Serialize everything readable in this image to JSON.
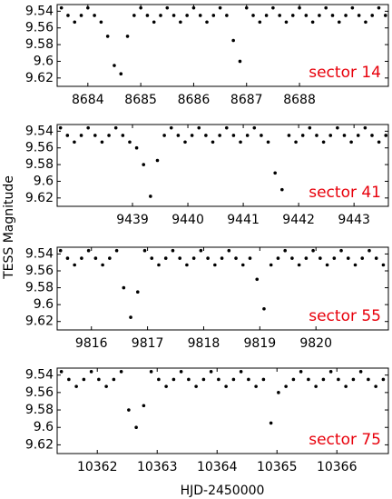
{
  "chart_data": [
    {
      "type": "scatter",
      "annotation": "sector 14",
      "annotation_color": "#e8000b",
      "ylabel": "TESS Magnitude",
      "color": "#000000",
      "y_inverted": true,
      "xlim": [
        8683.42,
        8689.68
      ],
      "xticks": [
        8684,
        8685,
        8686,
        8687,
        8688
      ],
      "ylim": [
        9.532,
        9.63
      ],
      "yticks": [
        9.54,
        9.56,
        9.58,
        9.6,
        9.62
      ],
      "x": [
        8683.5,
        8683.625,
        8683.75,
        8683.875,
        8684,
        8684.125,
        8684.25,
        8684.375,
        8684.5,
        8684.625,
        8684.75,
        8684.875,
        8685,
        8685.125,
        8685.25,
        8685.375,
        8685.5,
        8685.625,
        8685.75,
        8685.875,
        8686,
        8686.125,
        8686.25,
        8686.375,
        8686.5,
        8686.625,
        8686.75,
        8686.875,
        8687,
        8687.125,
        8687.25,
        8687.375,
        8687.5,
        8687.625,
        8687.75,
        8687.875,
        8688,
        8688.125,
        8688.25,
        8688.375,
        8688.5,
        8688.625,
        8688.75,
        8688.875,
        8689,
        8689.125,
        8689.25,
        8689.375,
        8689.5,
        8689.625
      ],
      "values": [
        9.536,
        9.545,
        9.553,
        9.545,
        9.536,
        9.545,
        9.553,
        9.57,
        9.605,
        9.615,
        9.57,
        9.545,
        9.536,
        9.545,
        9.553,
        9.545,
        9.536,
        9.545,
        9.553,
        9.545,
        9.536,
        9.545,
        9.553,
        9.545,
        9.536,
        9.545,
        9.575,
        9.6,
        9.536,
        9.545,
        9.553,
        9.545,
        9.536,
        9.545,
        9.553,
        9.545,
        9.536,
        9.545,
        9.553,
        9.545,
        9.536,
        9.545,
        9.553,
        9.545,
        9.536,
        9.545,
        9.553,
        9.545,
        9.536,
        9.545
      ]
    },
    {
      "type": "scatter",
      "annotation": "sector 41",
      "annotation_color": "#e8000b",
      "color": "#000000",
      "y_inverted": true,
      "xlim": [
        9437.64,
        9443.62
      ],
      "xticks": [
        9439,
        9440,
        9441,
        9442,
        9443
      ],
      "ylim": [
        9.532,
        9.63
      ],
      "yticks": [
        9.54,
        9.56,
        9.58,
        9.6,
        9.62
      ],
      "x": [
        9437.7,
        9437.825,
        9437.95,
        9438.075,
        9438.2,
        9438.325,
        9438.45,
        9438.575,
        9438.7,
        9438.825,
        9438.95,
        9439.075,
        9439.2,
        9439.325,
        9439.45,
        9439.575,
        9439.7,
        9439.825,
        9439.95,
        9440.075,
        9440.2,
        9440.325,
        9440.45,
        9440.575,
        9440.7,
        9440.825,
        9440.95,
        9441.075,
        9441.2,
        9441.325,
        9441.45,
        9441.575,
        9441.7,
        9441.825,
        9441.95,
        9442.075,
        9442.2,
        9442.325,
        9442.45,
        9442.575,
        9442.7,
        9442.825,
        9442.95,
        9443.075,
        9443.2,
        9443.325,
        9443.45,
        9443.575
      ],
      "values": [
        9.536,
        9.545,
        9.553,
        9.545,
        9.536,
        9.545,
        9.553,
        9.545,
        9.536,
        9.545,
        9.553,
        9.56,
        9.58,
        9.618,
        9.575,
        9.545,
        9.536,
        9.545,
        9.553,
        9.545,
        9.536,
        9.545,
        9.553,
        9.545,
        9.536,
        9.545,
        9.553,
        9.545,
        9.536,
        9.545,
        9.553,
        9.59,
        9.61,
        9.545,
        9.553,
        9.545,
        9.536,
        9.545,
        9.553,
        9.545,
        9.536,
        9.545,
        9.553,
        9.545,
        9.536,
        9.545,
        9.553,
        9.545
      ]
    },
    {
      "type": "scatter",
      "annotation": "sector 55",
      "annotation_color": "#e8000b",
      "color": "#000000",
      "y_inverted": true,
      "xlim": [
        9815.39,
        9821.29
      ],
      "xticks": [
        9816,
        9817,
        9818,
        9819,
        9820
      ],
      "ylim": [
        9.532,
        9.63
      ],
      "yticks": [
        9.54,
        9.56,
        9.58,
        9.6,
        9.62
      ],
      "x": [
        9815.45,
        9815.575,
        9815.7,
        9815.825,
        9815.95,
        9816.075,
        9816.2,
        9816.325,
        9816.45,
        9816.575,
        9816.7,
        9816.825,
        9816.95,
        9817.075,
        9817.2,
        9817.325,
        9817.45,
        9817.575,
        9817.7,
        9817.825,
        9817.95,
        9818.075,
        9818.2,
        9818.325,
        9818.45,
        9818.575,
        9818.7,
        9818.825,
        9818.95,
        9819.075,
        9819.2,
        9819.325,
        9819.45,
        9819.575,
        9819.7,
        9819.825,
        9819.95,
        9820.075,
        9820.2,
        9820.325,
        9820.45,
        9820.575,
        9820.7,
        9820.825,
        9820.95,
        9821.075,
        9821.2
      ],
      "values": [
        9.536,
        9.545,
        9.553,
        9.545,
        9.536,
        9.545,
        9.553,
        9.545,
        9.536,
        9.58,
        9.615,
        9.585,
        9.536,
        9.545,
        9.553,
        9.545,
        9.536,
        9.545,
        9.553,
        9.545,
        9.536,
        9.545,
        9.553,
        9.545,
        9.536,
        9.545,
        9.553,
        9.545,
        9.57,
        9.605,
        9.553,
        9.545,
        9.536,
        9.545,
        9.553,
        9.545,
        9.536,
        9.545,
        9.553,
        9.545,
        9.536,
        9.545,
        9.553,
        9.545,
        9.536,
        9.545,
        9.553
      ]
    },
    {
      "type": "scatter",
      "annotation": "sector 75",
      "annotation_color": "#e8000b",
      "xlabel": "HJD-2450000",
      "color": "#000000",
      "y_inverted": true,
      "xlim": [
        10361.33,
        10366.86
      ],
      "xticks": [
        10362,
        10363,
        10364,
        10365,
        10366
      ],
      "ylim": [
        9.532,
        9.63
      ],
      "yticks": [
        9.54,
        9.56,
        9.58,
        9.6,
        9.62
      ],
      "x": [
        10361.4,
        10361.525,
        10361.65,
        10361.775,
        10361.9,
        10362.025,
        10362.15,
        10362.275,
        10362.4,
        10362.525,
        10362.65,
        10362.775,
        10362.9,
        10363.025,
        10363.15,
        10363.275,
        10363.4,
        10363.525,
        10363.65,
        10363.775,
        10363.9,
        10364.025,
        10364.15,
        10364.275,
        10364.4,
        10364.525,
        10364.65,
        10364.775,
        10364.9,
        10365.025,
        10365.15,
        10365.275,
        10365.4,
        10365.525,
        10365.65,
        10365.775,
        10365.9,
        10366.025,
        10366.15,
        10366.275,
        10366.4,
        10366.525,
        10366.65,
        10366.775
      ],
      "values": [
        9.536,
        9.545,
        9.553,
        9.545,
        9.536,
        9.545,
        9.553,
        9.545,
        9.536,
        9.58,
        9.6,
        9.575,
        9.536,
        9.545,
        9.553,
        9.545,
        9.536,
        9.545,
        9.553,
        9.545,
        9.536,
        9.545,
        9.553,
        9.545,
        9.536,
        9.545,
        9.553,
        9.545,
        9.595,
        9.56,
        9.553,
        9.545,
        9.536,
        9.545,
        9.553,
        9.545,
        9.536,
        9.545,
        9.553,
        9.545,
        9.536,
        9.545,
        9.553,
        9.545
      ]
    }
  ]
}
